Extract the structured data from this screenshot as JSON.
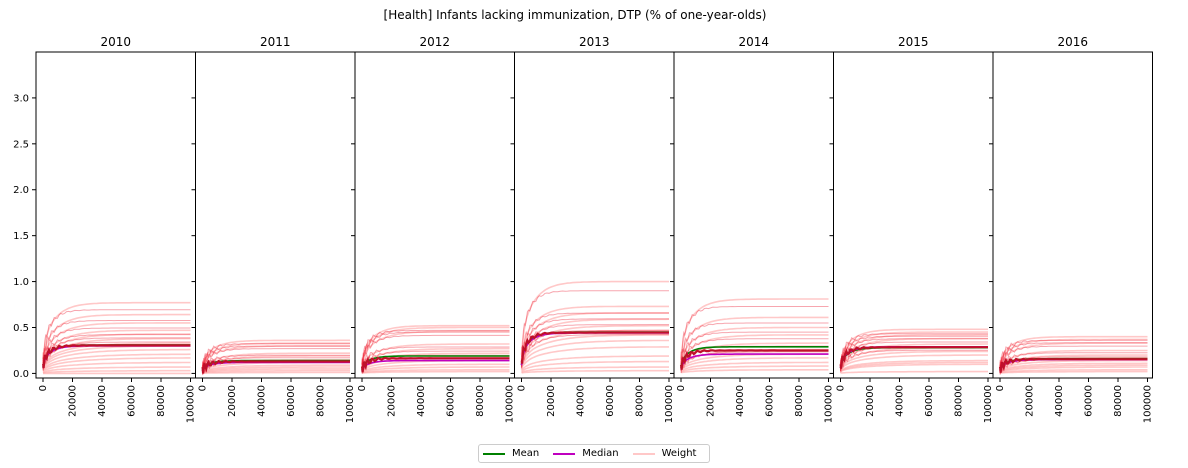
{
  "chart_data": {
    "type": "line",
    "title": "[Health] Infants lacking immunization, DTP (% of one-year-olds)",
    "panels": [
      {
        "title": "2010",
        "mean_final": 0.31,
        "median_final": 0.3,
        "weight_finals": [
          0.77,
          0.64,
          0.55,
          0.47,
          0.43,
          0.38,
          0.33,
          0.3,
          0.26,
          0.21,
          0.17,
          0.12,
          0.07,
          0.03,
          0.0
        ]
      },
      {
        "title": "2011",
        "mean_final": 0.14,
        "median_final": 0.12,
        "weight_finals": [
          0.36,
          0.33,
          0.3,
          0.22,
          0.19,
          0.15,
          0.12,
          0.09,
          0.07,
          0.05,
          0.03,
          0.01
        ]
      },
      {
        "title": "2012",
        "mean_final": 0.19,
        "median_final": 0.14,
        "weight_finals": [
          0.52,
          0.5,
          0.46,
          0.32,
          0.27,
          0.22,
          0.18,
          0.14,
          0.1,
          0.07,
          0.04,
          0.02
        ]
      },
      {
        "title": "2013",
        "mean_final": 0.45,
        "median_final": 0.44,
        "weight_finals": [
          1.0,
          0.73,
          0.66,
          0.59,
          0.52,
          0.47,
          0.42,
          0.36,
          0.29,
          0.19,
          0.13,
          0.07,
          0.03
        ]
      },
      {
        "title": "2014",
        "mean_final": 0.29,
        "median_final": 0.21,
        "weight_finals": [
          0.81,
          0.61,
          0.5,
          0.42,
          0.33,
          0.26,
          0.21,
          0.17,
          0.12,
          0.08,
          0.04
        ]
      },
      {
        "title": "2015",
        "mean_final": 0.28,
        "median_final": 0.29,
        "weight_finals": [
          0.48,
          0.45,
          0.42,
          0.38,
          0.32,
          0.28,
          0.24,
          0.2,
          0.14,
          0.12,
          0.1,
          0.02
        ]
      },
      {
        "title": "2016",
        "mean_final": 0.16,
        "median_final": 0.15,
        "weight_finals": [
          0.4,
          0.37,
          0.33,
          0.25,
          0.2,
          0.17,
          0.14,
          0.11,
          0.09,
          0.07,
          0.04,
          0.02
        ]
      }
    ],
    "x_ticks": [
      "0",
      "20000",
      "40000",
      "60000",
      "80000",
      "100000"
    ],
    "x_range": [
      0,
      100000
    ],
    "y_ticks": [
      "0.0",
      "0.5",
      "1.0",
      "1.5",
      "2.0",
      "2.5",
      "3.0"
    ],
    "y_range": [
      -0.05,
      3.5
    ],
    "legend": [
      {
        "label": "Mean",
        "color": "#008000"
      },
      {
        "label": "Median",
        "color": "#bf00bf"
      },
      {
        "label": "Weight",
        "color": "#ffc8c8"
      }
    ],
    "legend_placement": "bottom-center",
    "colors": {
      "weight": "#ff9a9a",
      "trace": "#e8001a",
      "mean": "#008000",
      "median": "#bf00bf",
      "combined": "#c0102a"
    }
  }
}
